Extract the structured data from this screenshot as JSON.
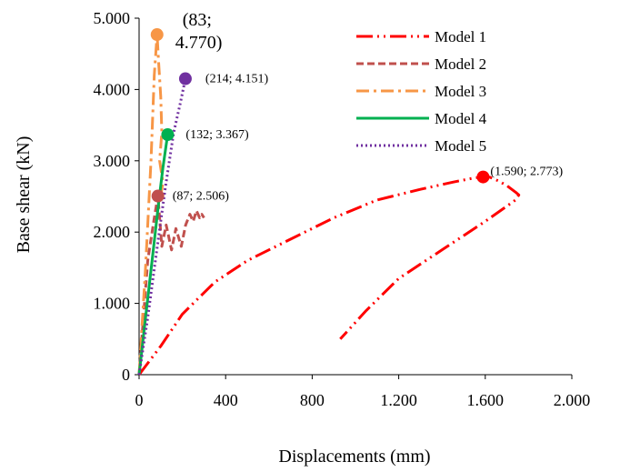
{
  "chart_data": {
    "type": "line",
    "title": "",
    "xlabel": "Displacements (mm)",
    "ylabel": "Base shear (kN)",
    "xlim": [
      0,
      2000
    ],
    "ylim": [
      0,
      5000
    ],
    "x_ticks": [
      0,
      400,
      800,
      1200,
      1600,
      2000
    ],
    "x_tick_labels": [
      "0",
      "400",
      "800",
      "1.200",
      "1.600",
      "2.000"
    ],
    "y_ticks": [
      0,
      1000,
      2000,
      3000,
      4000,
      5000
    ],
    "y_tick_labels": [
      "0",
      "1.000",
      "2.000",
      "3.000",
      "4.000",
      "5.000"
    ],
    "grid": false,
    "legend": "top-right",
    "series": [
      {
        "name": "Model 1",
        "color": "#ff0000",
        "dash": "long-dash-dot-dot",
        "x": [
          0,
          100,
          200,
          350,
          500,
          700,
          900,
          1100,
          1300,
          1450,
          1550,
          1590,
          1620,
          1660,
          1700,
          1740,
          1755,
          1740,
          1600,
          1400,
          1200,
          1050,
          930
        ],
        "y": [
          0,
          400,
          850,
          1300,
          1600,
          1900,
          2200,
          2450,
          2600,
          2700,
          2760,
          2773,
          2770,
          2720,
          2650,
          2560,
          2520,
          2450,
          2150,
          1750,
          1350,
          900,
          500
        ]
      },
      {
        "name": "Model 2",
        "color": "#c0504d",
        "dash": "dash",
        "x": [
          0,
          40,
          70,
          87,
          105,
          125,
          150,
          170,
          195,
          215,
          235,
          250,
          265,
          280,
          290,
          300
        ],
        "y": [
          0,
          1600,
          2200,
          2506,
          1800,
          2100,
          1750,
          2050,
          1800,
          2100,
          2250,
          2150,
          2300,
          2200,
          2250,
          2200
        ]
      },
      {
        "name": "Model 3",
        "color": "#f79646",
        "dash": "dash-dot",
        "x": [
          0,
          30,
          55,
          70,
          83,
          90,
          100,
          105,
          95,
          110,
          100
        ],
        "y": [
          0,
          1500,
          3000,
          4200,
          4770,
          4400,
          3900,
          3400,
          3000,
          2700,
          2500
        ]
      },
      {
        "name": "Model 4",
        "color": "#00b050",
        "dash": "solid",
        "x": [
          0,
          30,
          60,
          90,
          110,
          132
        ],
        "y": [
          0,
          800,
          1600,
          2400,
          2900,
          3367
        ]
      },
      {
        "name": "Model 5",
        "color": "#7030a0",
        "dash": "dot",
        "x": [
          0,
          40,
          80,
          120,
          160,
          190,
          214
        ],
        "y": [
          0,
          800,
          1700,
          2600,
          3400,
          3800,
          4151
        ]
      }
    ],
    "markers": [
      {
        "series": "Model 1",
        "x": 1590,
        "y": 2773,
        "label": "(1.590; 2.773)",
        "color": "#ff0000"
      },
      {
        "series": "Model 2",
        "x": 87,
        "y": 2506,
        "label": "(87; 2.506)",
        "color": "#c0504d"
      },
      {
        "series": "Model 3",
        "x": 83,
        "y": 4770,
        "label_line1": "(83;",
        "label_line2": "4.770)",
        "color": "#f79646"
      },
      {
        "series": "Model 4",
        "x": 132,
        "y": 3367,
        "label": "(132; 3.367)",
        "color": "#00b050"
      },
      {
        "series": "Model 5",
        "x": 214,
        "y": 4151,
        "label": "(214; 4.151)",
        "color": "#7030a0"
      }
    ]
  }
}
